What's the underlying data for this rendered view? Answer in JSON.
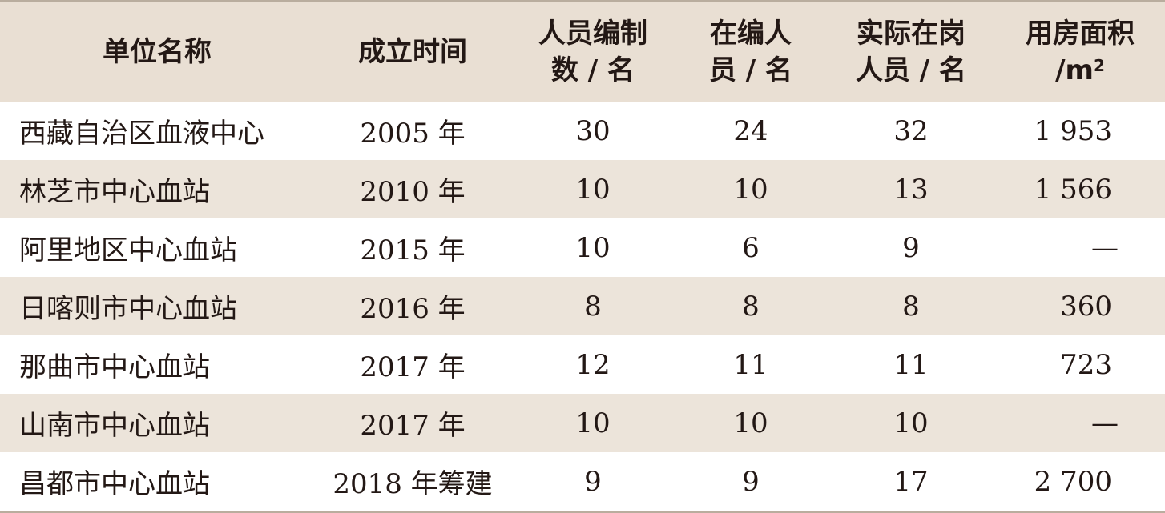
{
  "table": {
    "headers": [
      {
        "lines": [
          "单位名称"
        ]
      },
      {
        "lines": [
          "成立时间"
        ]
      },
      {
        "lines": [
          "人员编制",
          "数 / 名"
        ]
      },
      {
        "lines": [
          "在编人",
          "员 / 名"
        ]
      },
      {
        "lines": [
          "实际在岗",
          "人员 / 名"
        ]
      },
      {
        "lines": [
          "用房面积",
          "/m"
        ],
        "sup": "2"
      }
    ],
    "rows": [
      {
        "name": "西藏自治区血液中心",
        "established": "2005 年",
        "quota": "30",
        "on_staff": "24",
        "actual": "32",
        "area": "1 953"
      },
      {
        "name": "林芝市中心血站",
        "established": "2010 年",
        "quota": "10",
        "on_staff": "10",
        "actual": "13",
        "area": "1 566"
      },
      {
        "name": "阿里地区中心血站",
        "established": "2015 年",
        "quota": "10",
        "on_staff": "6",
        "actual": "9",
        "area": "—"
      },
      {
        "name": "日喀则市中心血站",
        "established": "2016 年",
        "quota": "8",
        "on_staff": "8",
        "actual": "8",
        "area": "360"
      },
      {
        "name": "那曲市中心血站",
        "established": "2017 年",
        "quota": "12",
        "on_staff": "11",
        "actual": "11",
        "area": "723"
      },
      {
        "name": "山南市中心血站",
        "established": "2017 年",
        "quota": "10",
        "on_staff": "10",
        "actual": "10",
        "area": "—"
      },
      {
        "name": "昌都市中心血站",
        "established": "2018 年筹建",
        "quota": "9",
        "on_staff": "9",
        "actual": "17",
        "area": "2 700"
      }
    ]
  },
  "colors": {
    "header_bg": "#e9dfd3",
    "stripe_bg": "#ece4da",
    "rule": "#b9ad9e",
    "text": "#231815"
  }
}
